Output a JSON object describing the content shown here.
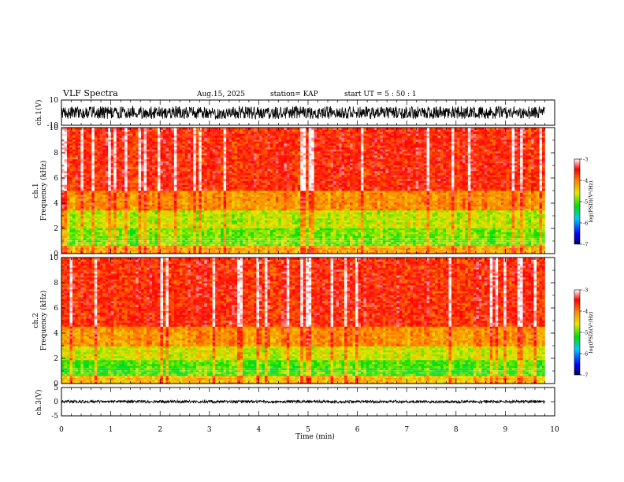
{
  "header": {
    "title": "VLF Spectra",
    "date": "Aug.15, 2025",
    "station": "station= KAP",
    "start_time": "start  UT =   5  : 50 : 1"
  },
  "chart_data": [
    {
      "type": "line",
      "name": "ch1-waveform",
      "ylabel": "ch.1(V)",
      "ylim": [
        -10,
        10
      ],
      "yticks": [
        "10",
        "-10"
      ],
      "xlim": [
        0,
        10
      ],
      "data_extent_min": 9.8,
      "amplitude_approx": 5,
      "color": "#000000"
    },
    {
      "type": "heatmap",
      "name": "ch1-spectrogram",
      "ylabel": "ch.1\nFrequency  (kHz)",
      "ylim": [
        0,
        10
      ],
      "yticks": [
        "0",
        "2",
        "4",
        "6",
        "8",
        "10"
      ],
      "xlim": [
        0,
        10
      ],
      "data_extent_min": 9.8,
      "colorbar": {
        "label": "log(PSD)(V²/Hz)",
        "range": [
          -7,
          -3
        ],
        "ticks": [
          "-3",
          "-4",
          "-5",
          "-6",
          "-7"
        ]
      },
      "bands_khz": [
        {
          "from": 0.0,
          "to": 0.6,
          "level": -4.2
        },
        {
          "from": 0.6,
          "to": 2.0,
          "level": -4.9
        },
        {
          "from": 2.0,
          "to": 2.4,
          "level": -4.6
        },
        {
          "from": 2.4,
          "to": 3.5,
          "level": -4.7
        },
        {
          "from": 3.5,
          "to": 5.0,
          "level": -4.1
        },
        {
          "from": 5.0,
          "to": 10.0,
          "level": -3.6
        }
      ]
    },
    {
      "type": "heatmap",
      "name": "ch2-spectrogram",
      "ylabel": "ch.2\nFrequency  (kHz)",
      "ylim": [
        0,
        10
      ],
      "yticks": [
        "0",
        "2",
        "4",
        "6",
        "8",
        "10"
      ],
      "xlim": [
        0,
        10
      ],
      "data_extent_min": 9.8,
      "colorbar": {
        "label": "log(PSD)(V²/Hz)",
        "range": [
          -7,
          -3
        ],
        "ticks": [
          "-3",
          "-4",
          "-5",
          "-6",
          "-7"
        ]
      },
      "bands_khz": [
        {
          "from": 0.0,
          "to": 0.6,
          "level": -4.3
        },
        {
          "from": 0.6,
          "to": 1.9,
          "level": -5.0
        },
        {
          "from": 1.9,
          "to": 3.0,
          "level": -4.6
        },
        {
          "from": 3.0,
          "to": 4.5,
          "level": -4.1
        },
        {
          "from": 4.5,
          "to": 10.0,
          "level": -3.6
        }
      ]
    },
    {
      "type": "line",
      "name": "ch3-waveform",
      "ylabel": "ch.3(V)",
      "ylim": [
        -5,
        5
      ],
      "yticks": [
        "5",
        "0",
        "-5"
      ],
      "xlim": [
        0,
        10
      ],
      "data_extent_min": 9.8,
      "mean_v": 0,
      "amplitude_approx": 0.5,
      "color": "#000000"
    }
  ],
  "xaxis": {
    "label": "Time  (min)",
    "ticks": [
      "0",
      "1",
      "2",
      "3",
      "4",
      "5",
      "6",
      "7",
      "8",
      "9",
      "10"
    ],
    "range": [
      0,
      10
    ]
  },
  "colors": {
    "spectrum_low": "#000060",
    "spectrum_mid": "#00e000",
    "spectrum_high": "#ff0000",
    "line": "#000000"
  }
}
